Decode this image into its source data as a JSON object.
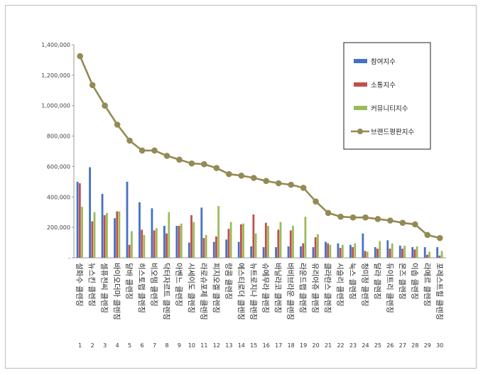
{
  "chart_data": {
    "type": "bar",
    "ylim": [
      0,
      1400000
    ],
    "yticks": [
      "-",
      "200,000",
      "400,000",
      "600,000",
      "800,000",
      "1,000,000",
      "1,200,000",
      "1,400,000"
    ],
    "grid": false,
    "legend_position": "top-right",
    "ranks": [
      "1",
      "2",
      "3",
      "4",
      "5",
      "6",
      "7",
      "8",
      "9",
      "10",
      "11",
      "12",
      "13",
      "14",
      "15",
      "16",
      "17",
      "18",
      "19",
      "20",
      "21",
      "22",
      "23",
      "24",
      "25",
      "26",
      "27",
      "28",
      "29",
      "30"
    ],
    "categories": [
      "설화수 클렌징",
      "뉴스킨 클렌징",
      "셀퓨전씨 클렌징",
      "바이오더마 클렌징",
      "달바 클렌징",
      "히스토랩 클렌징",
      "비오템 클렌징",
      "닥터자르트 클렌징",
      "아벤느 클렌징",
      "시세이도 클렌징",
      "라로슈포제 클렌징",
      "피지오겔 클렌징",
      "랑콤 클렌징",
      "에스티로더 클렌징",
      "뉴트로지나 클렌징",
      "슈에무라 클렌징",
      "바닐라코 클렌징",
      "바비브라운 클렌징",
      "라운드랩 클렌징",
      "유리아쥬 클렌징",
      "클라란스 클렌징",
      "시슬리 클렌징",
      "눅스 클렌징",
      "청미정 클렌징",
      "달라 클렌징",
      "듀이트리 클렌징",
      "몬즈 클렌징",
      "이솝 클렌징",
      "라메르 클렌징",
      "포레스트힐 클렌징"
    ],
    "series": [
      {
        "name": "참여지수",
        "type": "bar",
        "color": "#4472c4",
        "values": [
          500000,
          595000,
          420000,
          260000,
          500000,
          365000,
          325000,
          210000,
          210000,
          100000,
          330000,
          105000,
          120000,
          105000,
          75000,
          70000,
          70000,
          75000,
          75000,
          70000,
          105000,
          95000,
          85000,
          160000,
          70000,
          115000,
          80000,
          70000,
          70000,
          70000
        ]
      },
      {
        "name": "소통지수",
        "type": "bar",
        "color": "#c0504d",
        "values": [
          490000,
          240000,
          280000,
          305000,
          85000,
          185000,
          180000,
          160000,
          210000,
          280000,
          130000,
          140000,
          190000,
          220000,
          285000,
          230000,
          185000,
          180000,
          95000,
          135000,
          95000,
          65000,
          70000,
          45000,
          60000,
          60000,
          60000,
          55000,
          20000,
          15000
        ]
      },
      {
        "name": "커뮤니티지수",
        "type": "bar",
        "color": "#9bbb59",
        "values": [
          335000,
          300000,
          295000,
          305000,
          175000,
          150000,
          195000,
          300000,
          225000,
          235000,
          150000,
          340000,
          235000,
          225000,
          160000,
          210000,
          235000,
          210000,
          270000,
          155000,
          85000,
          85000,
          95000,
          40000,
          110000,
          95000,
          80000,
          75000,
          40000,
          45000
        ]
      },
      {
        "name": "브랜드평판지수",
        "type": "line",
        "color": "#948a54",
        "values": [
          1325000,
          1135000,
          1000000,
          875000,
          770000,
          705000,
          705000,
          670000,
          645000,
          620000,
          615000,
          590000,
          550000,
          540000,
          525000,
          505000,
          490000,
          480000,
          460000,
          370000,
          295000,
          270000,
          265000,
          265000,
          255000,
          245000,
          230000,
          220000,
          150000,
          130000
        ]
      }
    ]
  }
}
